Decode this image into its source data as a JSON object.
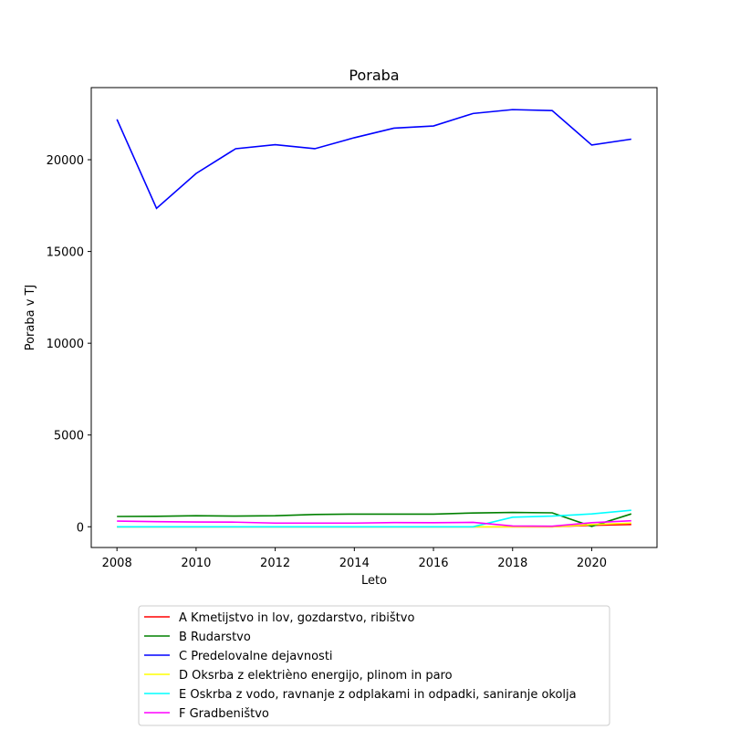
{
  "chart_data": {
    "type": "line",
    "title": "Poraba",
    "xlabel": "Leto",
    "ylabel": "Poraba v TJ",
    "x": [
      2008,
      2009,
      2010,
      2011,
      2012,
      2013,
      2014,
      2015,
      2016,
      2017,
      2018,
      2019,
      2020,
      2021
    ],
    "xlim": [
      2007.35,
      2021.65
    ],
    "ylim": [
      -1130,
      23930
    ],
    "xticks": [
      2008,
      2010,
      2012,
      2014,
      2016,
      2018,
      2020
    ],
    "yticks": [
      0,
      5000,
      10000,
      15000,
      20000
    ],
    "grid": false,
    "legend_position": "below-center",
    "series": [
      {
        "name": "A Kmetijstvo in lov, gozdarstvo, ribištvo",
        "color": "#ff0000",
        "values": [
          0,
          0,
          0,
          0,
          0,
          0,
          0,
          0,
          0,
          0,
          0,
          0,
          80,
          120
        ]
      },
      {
        "name": "B Rudarstvo",
        "color": "#008000",
        "values": [
          560,
          570,
          600,
          580,
          600,
          670,
          690,
          690,
          690,
          750,
          780,
          760,
          20,
          700
        ]
      },
      {
        "name": "C Predelovalne dejavnosti",
        "color": "#0000ff",
        "values": [
          22200,
          17350,
          19250,
          20600,
          20820,
          20600,
          21200,
          21720,
          21840,
          22520,
          22730,
          22680,
          20800,
          21120
        ]
      },
      {
        "name": "D Oksrba z elektrièno energijo, plinom in paro",
        "color": "#ffff00",
        "values": [
          0,
          0,
          0,
          0,
          0,
          0,
          0,
          0,
          0,
          0,
          0,
          0,
          120,
          200
        ]
      },
      {
        "name": "E Oskrba z vodo, ravnanje z odplakami in odpadki, saniranje okolja",
        "color": "#00ffff",
        "values": [
          0,
          0,
          0,
          0,
          0,
          0,
          0,
          0,
          0,
          0,
          520,
          580,
          700,
          900
        ]
      },
      {
        "name": "F Gradbeništvo",
        "color": "#ff00ff",
        "values": [
          310,
          280,
          260,
          250,
          200,
          200,
          200,
          230,
          220,
          240,
          40,
          30,
          220,
          330
        ]
      }
    ]
  }
}
